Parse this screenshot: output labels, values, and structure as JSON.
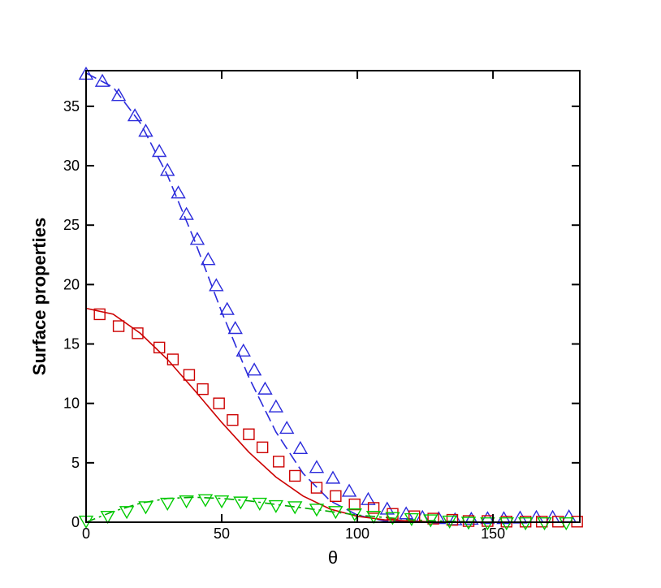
{
  "chart_data": {
    "type": "line",
    "title": "",
    "xlabel": "θ",
    "ylabel": "Surface properties",
    "xlim": [
      0,
      182
    ],
    "ylim": [
      0,
      38
    ],
    "xticks": [
      0,
      50,
      100,
      150
    ],
    "xtick_labels": [
      "0",
      "50",
      "100",
      "150"
    ],
    "yticks": [
      0,
      5,
      10,
      15,
      20,
      25,
      30,
      35
    ],
    "ytick_labels": [
      "0",
      "5",
      "10",
      "15",
      "20",
      "25",
      "30",
      "35"
    ],
    "grid": false,
    "legend": "none",
    "lines": [
      {
        "id": "blue",
        "color": "#2b2bdb",
        "dash": "dashed",
        "x": [
          0,
          10,
          20,
          30,
          40,
          50,
          60,
          70,
          80,
          90,
          100,
          110,
          120,
          130,
          140,
          150,
          160,
          170,
          180
        ],
        "y": [
          37.8,
          36.6,
          33.6,
          29.2,
          23.7,
          17.7,
          12.2,
          7.6,
          4.1,
          1.8,
          0.6,
          0.1,
          0,
          0,
          0,
          0,
          0,
          0,
          0
        ]
      },
      {
        "id": "red",
        "color": "#cc0000",
        "dash": "solid",
        "x": [
          0,
          10,
          20,
          30,
          40,
          50,
          60,
          70,
          80,
          90,
          100,
          110,
          120,
          130,
          140,
          150,
          160,
          170,
          180
        ],
        "y": [
          18.0,
          17.5,
          15.9,
          13.7,
          11.1,
          8.4,
          5.9,
          3.8,
          2.2,
          1.1,
          0.5,
          0.2,
          0.1,
          0,
          0,
          0,
          0,
          0,
          0
        ]
      },
      {
        "id": "green",
        "color": "#00aa00",
        "dash": "dashdot",
        "x": [
          0,
          10,
          20,
          30,
          40,
          50,
          60,
          70,
          80,
          90,
          100,
          110,
          120,
          130,
          140,
          150,
          160,
          170,
          180
        ],
        "y": [
          0.0,
          0.9,
          1.6,
          2.0,
          2.1,
          2.0,
          1.8,
          1.5,
          1.2,
          0.9,
          0.6,
          0.4,
          0.2,
          0.1,
          0.05,
          0,
          0,
          0,
          0
        ]
      }
    ],
    "series": [
      {
        "marker": "triangle-up",
        "color": "#2b2bdb",
        "x": [
          0,
          6,
          12,
          18,
          22,
          27,
          30,
          34,
          37,
          41,
          45,
          48,
          52,
          55,
          58,
          62,
          66,
          70,
          74,
          79,
          85,
          91,
          97,
          104,
          111,
          118,
          124,
          130,
          136,
          142,
          148,
          154,
          160,
          166,
          172,
          178
        ],
        "y": [
          37.7,
          37.1,
          35.9,
          34.2,
          32.9,
          31.2,
          29.6,
          27.7,
          25.9,
          23.8,
          22.1,
          19.9,
          17.9,
          16.3,
          14.4,
          12.8,
          11.2,
          9.7,
          7.9,
          6.2,
          4.6,
          3.7,
          2.6,
          1.9,
          1.1,
          0.7,
          0.4,
          0.3,
          0.2,
          0.25,
          0.3,
          0.3,
          0.35,
          0.4,
          0.4,
          0.45
        ]
      },
      {
        "marker": "square",
        "color": "#cc0000",
        "x": [
          5,
          12,
          19,
          27,
          32,
          38,
          43,
          49,
          54,
          60,
          65,
          71,
          77,
          85,
          92,
          99,
          106,
          113,
          121,
          128,
          135,
          141,
          148,
          155,
          162,
          168,
          174,
          181
        ],
        "y": [
          17.5,
          16.5,
          15.9,
          14.7,
          13.7,
          12.4,
          11.2,
          10.0,
          8.6,
          7.4,
          6.3,
          5.1,
          3.9,
          2.9,
          2.2,
          1.5,
          1.2,
          0.7,
          0.5,
          0.3,
          0.2,
          0.1,
          0.1,
          0.05,
          0.05,
          0.05,
          0.05,
          0.05
        ]
      },
      {
        "marker": "triangle-down",
        "color": "#00cc00",
        "x": [
          0,
          8,
          15,
          22,
          30,
          37,
          44,
          50,
          57,
          64,
          70,
          77,
          85,
          92,
          99,
          106,
          113,
          120,
          127,
          134,
          141,
          148,
          155,
          162,
          169,
          177
        ],
        "y": [
          0.1,
          0.5,
          0.9,
          1.3,
          1.6,
          1.8,
          1.9,
          1.8,
          1.7,
          1.6,
          1.4,
          1.3,
          1.1,
          0.9,
          0.7,
          0.5,
          0.4,
          0.3,
          0.2,
          0.1,
          0.0,
          -0.05,
          -0.05,
          -0.05,
          -0.05,
          -0.05
        ]
      }
    ]
  }
}
